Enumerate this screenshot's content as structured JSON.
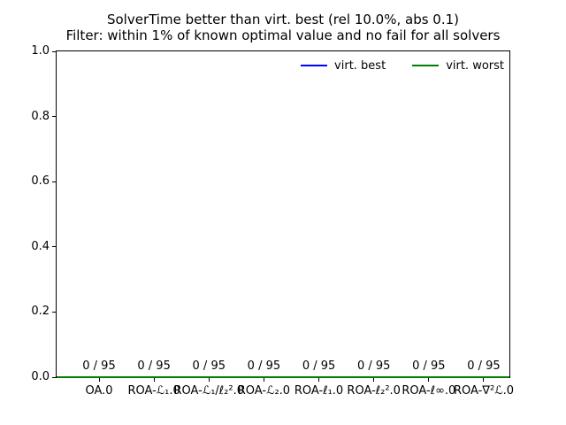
{
  "colors": {
    "background": "#ffffff",
    "axis": "#000000",
    "virt_best": "#0000ff",
    "virt_worst": "#008000"
  },
  "chart_data": {
    "type": "line",
    "title": "SolverTime better than virt. best (rel 10.0%, abs 0.1)",
    "subtitle": "Filter: within 1% of known optimal value and no fail for all solvers",
    "categories": [
      "OA.0",
      "ROA-ℒ₁.0",
      "ROA-ℒ₁/ℓ₂².0",
      "ROA-ℒ₂.0",
      "ROA-ℓ₁.0",
      "ROA-ℓ₂².0",
      "ROA-ℓ∞.0",
      "ROA-∇²ℒ.0"
    ],
    "series": [
      {
        "name": "virt. best",
        "color": "#0000ff",
        "values": [
          0,
          0,
          0,
          0,
          0,
          0,
          0,
          0
        ]
      },
      {
        "name": "virt. worst",
        "color": "#008000",
        "values": [
          0,
          0,
          0,
          0,
          0,
          0,
          0,
          0
        ]
      }
    ],
    "annotations": [
      "0 / 95",
      "0 / 95",
      "0 / 95",
      "0 / 95",
      "0 / 95",
      "0 / 95",
      "0 / 95",
      "0 / 95"
    ],
    "xlabel": "",
    "ylabel": "",
    "ylim": [
      0.0,
      1.0
    ],
    "yticks": [
      "0.0",
      "0.2",
      "0.4",
      "0.6",
      "0.8",
      "1.0"
    ],
    "legend_position": "upper right",
    "legend_frame": false,
    "grid": false
  }
}
